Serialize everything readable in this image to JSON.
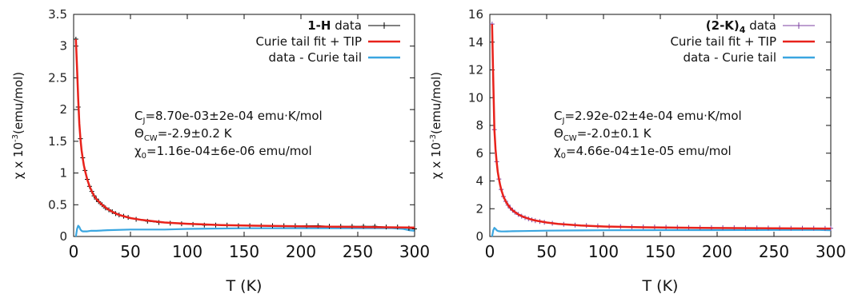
{
  "colors": {
    "data": "#000000",
    "data2": "#7b3fa0",
    "fit": "#e8221b",
    "diff": "#3aa6e0"
  },
  "chart_data": [
    {
      "type": "line",
      "xlabel": "T (K)",
      "ylabel": "χ x 10⁻³(emu/mol)",
      "ylabel_parts": {
        "pre": "χ x 10",
        "sup": "-3",
        "post": "(emu/mol)"
      },
      "xlim": [
        0,
        300
      ],
      "ylim": [
        0,
        3.5
      ],
      "xticks": [
        "0",
        "50",
        "100",
        "150",
        "200",
        "250",
        "300"
      ],
      "yticks": [
        "0",
        "0.5",
        "1",
        "1.5",
        "2",
        "2.5",
        "3",
        "3.5"
      ],
      "legend_position": "top-right",
      "legend": {
        "data_bold": "1-H",
        "data_rest": " data",
        "fit": "Curie tail fit + TIP",
        "diff": "data - Curie tail"
      },
      "params": {
        "c_pre": "C",
        "c_sub": "J",
        "c_post": "=8.70e-03±2e-04 emu·K/mol",
        "theta_pre": "Θ",
        "theta_sub": "CW",
        "theta_post": "=-2.9±0.2 K",
        "chi_pre": "χ",
        "chi_sub": "0",
        "chi_post": "=1.16e-04±6e-06 emu/mol"
      },
      "series": [
        {
          "name": "1-H data",
          "role": "data",
          "x": [
            2,
            4,
            6,
            8,
            10,
            12,
            14,
            16,
            18,
            20,
            22,
            25,
            28,
            31,
            34,
            37,
            40,
            44,
            48,
            55,
            65,
            75,
            85,
            95,
            105,
            115,
            125,
            135,
            145,
            155,
            165,
            175,
            185,
            195,
            205,
            215,
            225,
            235,
            245,
            255,
            265,
            275,
            285,
            295,
            300
          ],
          "y": [
            3.11,
            2.04,
            1.54,
            1.24,
            1.04,
            0.9,
            0.79,
            0.71,
            0.64,
            0.59,
            0.55,
            0.5,
            0.45,
            0.42,
            0.39,
            0.36,
            0.34,
            0.32,
            0.3,
            0.27,
            0.24,
            0.22,
            0.21,
            0.2,
            0.19,
            0.18,
            0.18,
            0.18,
            0.17,
            0.17,
            0.17,
            0.17,
            0.17,
            0.17,
            0.17,
            0.17,
            0.16,
            0.16,
            0.16,
            0.16,
            0.16,
            0.15,
            0.15,
            0.13,
            0.12
          ]
        },
        {
          "name": "Curie tail fit + TIP",
          "role": "fit",
          "x": [
            2,
            3,
            4,
            5,
            6,
            7,
            8,
            9,
            10,
            12,
            14,
            16,
            18,
            20,
            25,
            30,
            35,
            40,
            50,
            60,
            80,
            100,
            130,
            160,
            200,
            250,
            300
          ],
          "y": [
            3.11,
            2.64,
            2.17,
            1.78,
            1.54,
            1.36,
            1.23,
            1.12,
            1.04,
            0.9,
            0.79,
            0.71,
            0.64,
            0.59,
            0.5,
            0.43,
            0.38,
            0.34,
            0.29,
            0.26,
            0.22,
            0.2,
            0.18,
            0.17,
            0.16,
            0.15,
            0.14
          ]
        },
        {
          "name": "data - Curie tail",
          "role": "diff",
          "x": [
            2,
            3,
            4,
            5,
            6,
            7,
            8,
            10,
            12,
            15,
            20,
            30,
            50,
            80,
            100,
            150,
            200,
            250,
            280,
            290,
            295,
            300
          ],
          "y": [
            0.0,
            0.12,
            0.17,
            0.15,
            0.11,
            0.09,
            0.08,
            0.08,
            0.08,
            0.09,
            0.09,
            0.1,
            0.11,
            0.11,
            0.12,
            0.13,
            0.13,
            0.13,
            0.13,
            0.12,
            0.1,
            0.09
          ]
        }
      ]
    },
    {
      "type": "line",
      "xlabel": "T (K)",
      "ylabel": "χ x 10⁻³(emu/mol)",
      "ylabel_parts": {
        "pre": "χ x 10",
        "sup": "-3",
        "post": "(emu/mol)"
      },
      "xlim": [
        0,
        300
      ],
      "ylim": [
        0,
        16
      ],
      "xticks": [
        "0",
        "50",
        "100",
        "150",
        "200",
        "250",
        "300"
      ],
      "yticks": [
        "0",
        "2",
        "4",
        "6",
        "8",
        "10",
        "12",
        "14",
        "16"
      ],
      "legend_position": "top-right",
      "legend": {
        "data_bold": "(2-K)",
        "data_bold_sub": "4",
        "data_rest": " data",
        "fit": "Curie tail fit + TIP",
        "diff": "data - Curie tail"
      },
      "params": {
        "c_pre": "C",
        "c_sub": "J",
        "c_post": "=2.92e-02±4e-04 emu·K/mol",
        "theta_pre": "Θ",
        "theta_sub": "CW",
        "theta_post": "=-2.0±0.1 K",
        "chi_pre": "χ",
        "chi_sub": "0",
        "chi_post": "=4.66e-04±1e-05 emu/mol"
      },
      "series": [
        {
          "name": "(2-K)4 data",
          "role": "data",
          "x": [
            2,
            4,
            6,
            8,
            10,
            12,
            14,
            16,
            18,
            20,
            22,
            25,
            28,
            31,
            34,
            37,
            40,
            44,
            48,
            55,
            65,
            75,
            85,
            95,
            105,
            115,
            125,
            135,
            145,
            155,
            165,
            175,
            185,
            195,
            205,
            215,
            225,
            235,
            245,
            255,
            265,
            275,
            285,
            295,
            300
          ],
          "y": [
            15.3,
            7.7,
            5.39,
            4.14,
            3.39,
            2.88,
            2.53,
            2.26,
            2.05,
            1.89,
            1.75,
            1.59,
            1.46,
            1.36,
            1.27,
            1.2,
            1.14,
            1.08,
            1.02,
            0.95,
            0.88,
            0.82,
            0.79,
            0.76,
            0.73,
            0.71,
            0.7,
            0.69,
            0.68,
            0.67,
            0.66,
            0.65,
            0.65,
            0.64,
            0.63,
            0.63,
            0.62,
            0.62,
            0.61,
            0.61,
            0.6,
            0.6,
            0.6,
            0.59,
            0.59
          ]
        },
        {
          "name": "Curie tail fit + TIP",
          "role": "fit",
          "x": [
            2,
            3,
            4,
            5,
            6,
            7,
            8,
            9,
            10,
            12,
            14,
            16,
            18,
            20,
            25,
            30,
            35,
            40,
            50,
            60,
            80,
            100,
            130,
            160,
            200,
            250,
            300
          ],
          "y": [
            15.3,
            11.2,
            7.7,
            6.29,
            5.39,
            4.65,
            4.14,
            3.73,
            3.39,
            2.88,
            2.53,
            2.26,
            2.05,
            1.89,
            1.59,
            1.4,
            1.26,
            1.15,
            1.01,
            0.91,
            0.79,
            0.72,
            0.67,
            0.64,
            0.61,
            0.59,
            0.57
          ]
        },
        {
          "name": "data - Curie tail",
          "role": "diff",
          "x": [
            2,
            3,
            4,
            5,
            6,
            7,
            8,
            10,
            12,
            15,
            20,
            30,
            50,
            80,
            100,
            150,
            200,
            250,
            280,
            290,
            295,
            300
          ],
          "y": [
            0.0,
            0.45,
            0.62,
            0.55,
            0.45,
            0.4,
            0.38,
            0.36,
            0.36,
            0.37,
            0.38,
            0.39,
            0.42,
            0.44,
            0.45,
            0.46,
            0.46,
            0.47,
            0.47,
            0.47,
            0.46,
            0.45
          ]
        }
      ]
    }
  ]
}
